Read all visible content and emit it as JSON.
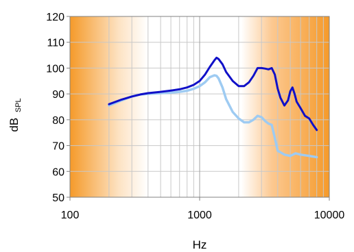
{
  "chart_data": {
    "type": "line",
    "xlabel": "Hz",
    "ylabel": "dB",
    "ylabel_subscript": "SPL",
    "xscale": "log",
    "xlim": [
      100,
      10000
    ],
    "ylim": [
      50,
      120
    ],
    "x_ticks": [
      "100",
      "1000",
      "10000"
    ],
    "y_ticks": [
      "50",
      "60",
      "70",
      "80",
      "90",
      "100",
      "110",
      "120"
    ],
    "grid": true,
    "legend": "none",
    "background": "orange-white-orange horizontal gradient",
    "colors": {
      "dark_series": "#1010c8",
      "light_series": "#9ecbf2",
      "band_edge": "#f59a2a",
      "band_center": "#ffffff",
      "grid": "#c8c8c8"
    },
    "series": [
      {
        "color": "#1010c8",
        "x": [
          200,
          250,
          300,
          350,
          400,
          500,
          600,
          700,
          800,
          900,
          1000,
          1100,
          1200,
          1300,
          1350,
          1400,
          1500,
          1600,
          1800,
          2000,
          2200,
          2400,
          2600,
          2800,
          3000,
          3200,
          3400,
          3600,
          3800,
          4000,
          4200,
          4500,
          4800,
          5000,
          5200,
          5400,
          5600,
          6000,
          6500,
          7000,
          7500,
          8000
        ],
        "y": [
          86,
          87.8,
          89,
          89.8,
          90.3,
          90.8,
          91.3,
          91.8,
          92.5,
          93.5,
          95,
          97.5,
          100.5,
          103,
          104,
          103.5,
          101.5,
          98.5,
          95,
          93,
          93,
          94.5,
          97,
          100,
          100,
          99.8,
          99.5,
          100,
          97.5,
          92,
          88.5,
          85.5,
          87.5,
          91,
          92.5,
          90,
          87,
          84.5,
          81.5,
          80.5,
          78,
          76
        ]
      },
      {
        "color": "#9ecbf2",
        "x": [
          200,
          250,
          300,
          350,
          400,
          500,
          600,
          700,
          800,
          900,
          1000,
          1100,
          1200,
          1300,
          1350,
          1400,
          1500,
          1600,
          1800,
          2000,
          2200,
          2400,
          2600,
          2800,
          3000,
          3200,
          3400,
          3600,
          3800,
          4000,
          4500,
          5000,
          5500,
          6000,
          7000,
          8000
        ],
        "y": [
          85.5,
          87.5,
          89,
          89.8,
          90,
          90.3,
          90.5,
          90.8,
          91.2,
          92,
          93,
          94.5,
          96.5,
          97.2,
          97,
          96,
          92.5,
          88,
          83,
          80.5,
          79,
          79,
          80,
          81.5,
          81,
          79.5,
          78.5,
          78,
          73,
          68,
          66.5,
          66,
          67,
          66.5,
          66,
          65.5
        ]
      }
    ]
  }
}
